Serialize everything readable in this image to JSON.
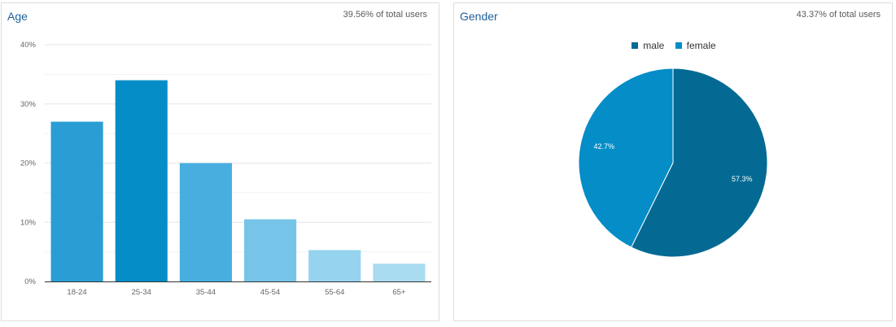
{
  "age_panel": {
    "title": "Age",
    "meta": "39.56% of total users"
  },
  "gender_panel": {
    "title": "Gender",
    "meta": "43.37% of total users"
  },
  "chart_data": [
    {
      "type": "bar",
      "title": "Age",
      "categories": [
        "18-24",
        "25-34",
        "35-44",
        "45-54",
        "55-64",
        "65+"
      ],
      "values": [
        27.0,
        34.0,
        20.0,
        10.5,
        5.3,
        3.0
      ],
      "colors": [
        "#2a9ed4",
        "#058dc7",
        "#48aee0",
        "#76c4e8",
        "#96d3ee",
        "#a9dbf1"
      ],
      "ylim": [
        0,
        40
      ],
      "yticks": [
        "0%",
        "10%",
        "20%",
        "30%",
        "40%"
      ],
      "grid": true
    },
    {
      "type": "pie",
      "title": "Gender",
      "labels": [
        "male",
        "female"
      ],
      "values": [
        57.3,
        42.7
      ],
      "value_labels": [
        "57.3%",
        "42.7%"
      ],
      "colors": [
        "#056a93",
        "#058dc7"
      ],
      "legend": "top-center"
    }
  ]
}
